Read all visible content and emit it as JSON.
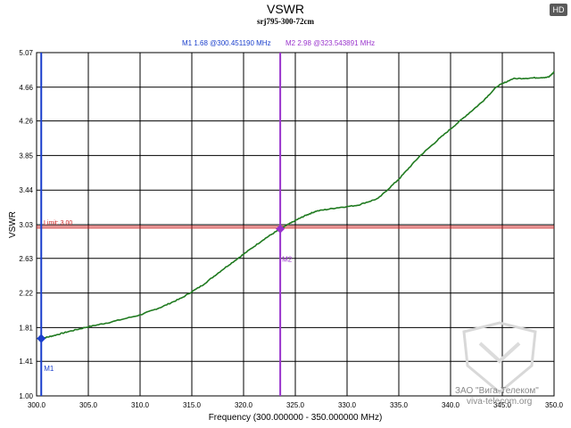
{
  "badge": "HD",
  "chart_data": {
    "type": "line",
    "title": "VSWR",
    "subtitle": "srj795-300-72cm",
    "xlabel": "Frequency (300.000000 - 350.000000 MHz)",
    "ylabel": "VSWR",
    "xlim": [
      300,
      350
    ],
    "ylim": [
      1.0,
      5.07
    ],
    "x_ticks": [
      300.0,
      305.0,
      310.0,
      315.0,
      320.0,
      325.0,
      330.0,
      335.0,
      340.0,
      345.0,
      350.0
    ],
    "x_tick_labels": [
      "300.0",
      "305.0",
      "310.0",
      "315.0",
      "320.0",
      "325.0",
      "330.0",
      "335.0",
      "340.0",
      "345.0",
      "350.0"
    ],
    "y_ticks": [
      1.0,
      1.41,
      1.81,
      2.22,
      2.63,
      3.03,
      3.44,
      3.85,
      4.26,
      4.66,
      5.07
    ],
    "y_tick_labels": [
      "1.00",
      "1.41",
      "1.81",
      "2.22",
      "2.63",
      "3.03",
      "3.44",
      "3.85",
      "4.26",
      "4.66",
      "5.07"
    ],
    "grid": true,
    "series": [
      {
        "color": "#1f7a1f",
        "x": [
          300.45,
          301.5,
          303,
          305,
          307,
          310,
          312,
          314,
          316,
          318,
          320,
          322,
          323.54,
          325,
          326,
          327,
          329,
          331,
          333,
          335,
          337,
          339,
          341,
          343,
          344.5,
          346,
          348,
          349.5,
          350
        ],
        "y": [
          1.68,
          1.71,
          1.76,
          1.82,
          1.87,
          1.96,
          2.05,
          2.16,
          2.31,
          2.5,
          2.68,
          2.86,
          2.98,
          3.08,
          3.14,
          3.19,
          3.23,
          3.26,
          3.34,
          3.57,
          3.84,
          4.06,
          4.27,
          4.48,
          4.67,
          4.76,
          4.77,
          4.78,
          4.84
        ]
      }
    ],
    "limit": {
      "label": "Limit: 3.00",
      "value": 3.0,
      "color": "#cc2222"
    },
    "markers": [
      {
        "name": "M1",
        "readout": "M1  1.68 @300.451190 MHz",
        "x": 300.45119,
        "y": 1.68,
        "color": "#1a3fcc"
      },
      {
        "name": "M2",
        "readout": "M2  2.98 @323.543891 MHz",
        "x": 323.543891,
        "y": 2.98,
        "color": "#9933cc"
      }
    ]
  },
  "watermark": {
    "line1": "ЗАО \"Вига-Телеком\"",
    "line2": "viva-telecom.org"
  }
}
